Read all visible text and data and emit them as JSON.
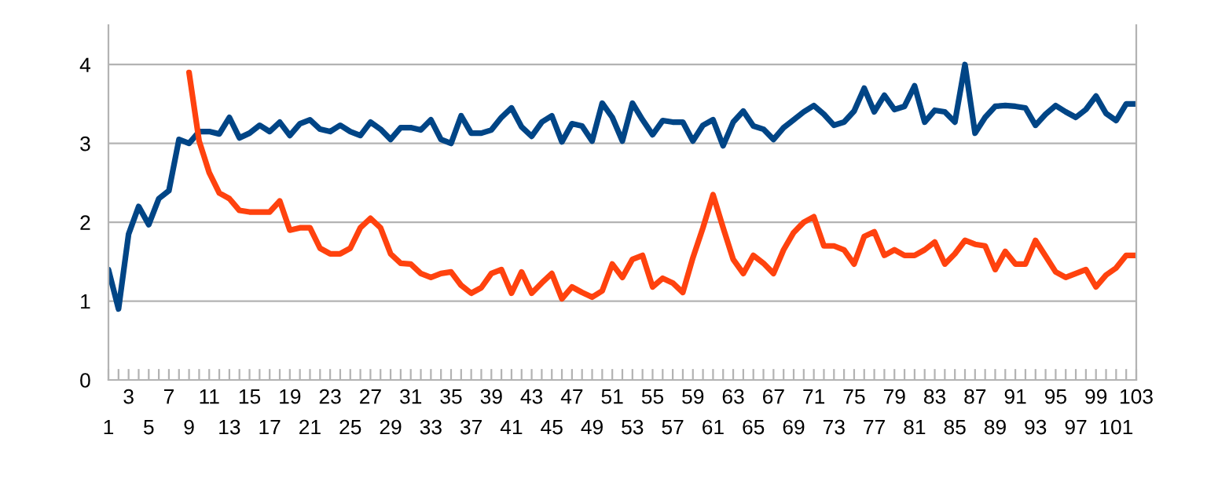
{
  "chart_data": {
    "type": "line",
    "categories": [
      "1",
      null,
      "3",
      null,
      "5",
      null,
      "7",
      null,
      "9",
      null,
      "11",
      null,
      "13",
      null,
      "15",
      null,
      "17",
      null,
      "19",
      null,
      "21",
      null,
      "23",
      null,
      "25",
      null,
      "27",
      null,
      "29",
      null,
      "31",
      null,
      "33",
      null,
      "35",
      null,
      "37",
      null,
      "39",
      null,
      "41",
      null,
      "43",
      null,
      "45",
      null,
      "47",
      null,
      "49",
      null,
      "51",
      null,
      "53",
      null,
      "55",
      null,
      "57",
      null,
      "59",
      null,
      "61",
      null,
      "63",
      null,
      "65",
      null,
      "67",
      null,
      "69",
      null,
      "71",
      null,
      "73",
      null,
      "75",
      null,
      "77",
      null,
      "79",
      null,
      "81",
      null,
      "83",
      null,
      "85",
      null,
      "87",
      null,
      "89",
      null,
      "91",
      null,
      "93",
      null,
      "95",
      null,
      "97",
      null,
      "99",
      null,
      "101",
      null,
      "103"
    ],
    "series": [
      {
        "color": "#004586",
        "values": [
          1.4,
          0.9,
          1.85,
          2.2,
          1.97,
          2.3,
          2.4,
          3.05,
          3.0,
          3.15,
          3.15,
          3.12,
          3.33,
          3.07,
          3.13,
          3.23,
          3.15,
          3.27,
          3.1,
          3.25,
          3.3,
          3.18,
          3.15,
          3.23,
          3.15,
          3.1,
          3.27,
          3.18,
          3.05,
          3.2,
          3.2,
          3.17,
          3.3,
          3.05,
          3.0,
          3.35,
          3.13,
          3.13,
          3.17,
          3.33,
          3.45,
          3.21,
          3.09,
          3.27,
          3.35,
          3.02,
          3.25,
          3.22,
          3.03,
          3.51,
          3.33,
          3.03,
          3.51,
          3.3,
          3.11,
          3.29,
          3.27,
          3.27,
          3.03,
          3.23,
          3.3,
          2.97,
          3.27,
          3.41,
          3.22,
          3.18,
          3.05,
          3.2,
          3.3,
          3.4,
          3.48,
          3.37,
          3.23,
          3.27,
          3.41,
          3.7,
          3.4,
          3.61,
          3.43,
          3.47,
          3.73,
          3.27,
          3.42,
          3.4,
          3.27,
          4.0,
          3.13,
          3.33,
          3.47,
          3.48,
          3.47,
          3.45,
          3.23,
          3.37,
          3.48,
          3.4,
          3.33,
          3.43,
          3.6,
          3.38,
          3.29,
          3.5,
          3.5
        ]
      },
      {
        "color": "#ff420e",
        "values": [
          null,
          null,
          null,
          null,
          null,
          null,
          null,
          null,
          3.9,
          3.03,
          2.63,
          2.37,
          2.3,
          2.15,
          2.13,
          2.13,
          2.13,
          2.27,
          1.9,
          1.93,
          1.93,
          1.67,
          1.6,
          1.6,
          1.67,
          1.93,
          2.05,
          1.93,
          1.6,
          1.48,
          1.47,
          1.35,
          1.3,
          1.35,
          1.37,
          1.2,
          1.1,
          1.17,
          1.35,
          1.4,
          1.1,
          1.37,
          1.1,
          1.23,
          1.35,
          1.03,
          1.18,
          1.11,
          1.05,
          1.13,
          1.47,
          1.3,
          1.53,
          1.58,
          1.18,
          1.29,
          1.23,
          1.11,
          1.55,
          1.93,
          2.35,
          1.93,
          1.53,
          1.35,
          1.58,
          1.48,
          1.35,
          1.65,
          1.87,
          2.0,
          2.07,
          1.7,
          1.7,
          1.65,
          1.47,
          1.82,
          1.88,
          1.58,
          1.65,
          1.58,
          1.58,
          1.65,
          1.75,
          1.47,
          1.6,
          1.77,
          1.72,
          1.7,
          1.4,
          1.63,
          1.47,
          1.47,
          1.77,
          1.57,
          1.37,
          1.3,
          1.35,
          1.4,
          1.18,
          1.33,
          1.42,
          1.58,
          1.58
        ]
      }
    ],
    "ylim": [
      0,
      4.5
    ],
    "yticks": [
      0,
      1,
      2,
      3,
      4
    ],
    "grid": "y",
    "legend": false
  }
}
